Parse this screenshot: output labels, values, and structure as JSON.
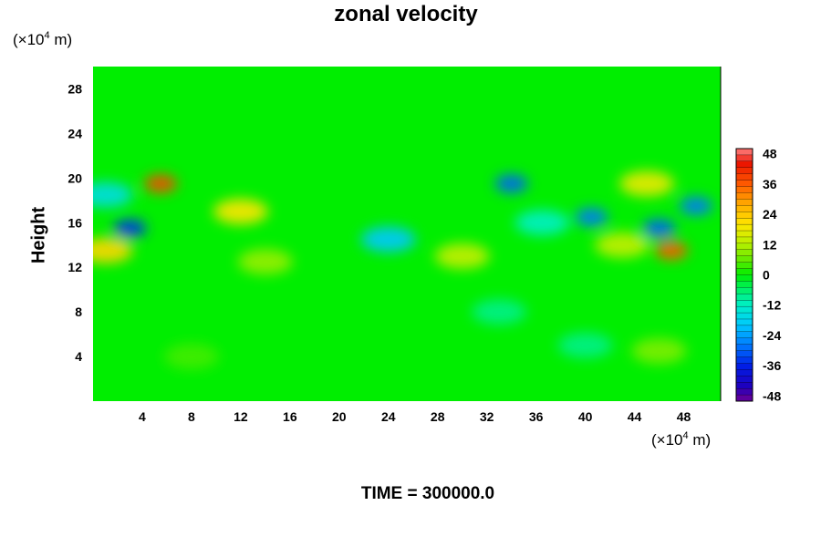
{
  "chart_data": {
    "type": "heatmap",
    "title": "zonal velocity",
    "ylabel": "Height",
    "xlabel": "",
    "x_unit_prefix": "(×10",
    "x_unit_exp": "4",
    "x_unit_suffix": " m)",
    "y_unit_prefix": "(×10",
    "y_unit_exp": "4",
    "y_unit_suffix": " m)",
    "xlim": [
      0,
      51
    ],
    "ylim": [
      0,
      30
    ],
    "x_ticks": [
      "4",
      "8",
      "12",
      "16",
      "20",
      "24",
      "28",
      "32",
      "36",
      "40",
      "44",
      "48"
    ],
    "y_ticks": [
      "4",
      "8",
      "12",
      "16",
      "20",
      "24",
      "28"
    ],
    "colorbar": {
      "range": [
        -50,
        50
      ],
      "ticks": [
        "48",
        "36",
        "24",
        "12",
        "0",
        "-12",
        "-24",
        "-36",
        "-48"
      ]
    },
    "background_value": 0,
    "features": [
      {
        "x": 5.5,
        "y": 19.5,
        "value": 38
      },
      {
        "x": 47,
        "y": 13.5,
        "value": 36
      },
      {
        "x": 3,
        "y": 15.5,
        "value": -34
      },
      {
        "x": 49,
        "y": 17.5,
        "value": -28
      },
      {
        "x": 34,
        "y": 19.5,
        "value": -30
      },
      {
        "x": 40.5,
        "y": 16.5,
        "value": -28
      },
      {
        "x": 46,
        "y": 15.5,
        "value": -30
      },
      {
        "x": 24,
        "y": 14.5,
        "value": -20
      },
      {
        "x": 1,
        "y": 13.5,
        "value": 22
      },
      {
        "x": 12,
        "y": 17,
        "value": 20
      },
      {
        "x": 45,
        "y": 19.5,
        "value": 18
      },
      {
        "x": 30,
        "y": 13,
        "value": 14
      },
      {
        "x": 43,
        "y": 14,
        "value": 14
      },
      {
        "x": 14,
        "y": 12.5,
        "value": 10
      },
      {
        "x": 36.5,
        "y": 16,
        "value": -12
      },
      {
        "x": 1,
        "y": 18.5,
        "value": -16
      },
      {
        "x": 33,
        "y": 8,
        "value": -8
      },
      {
        "x": 40,
        "y": 5,
        "value": -8
      },
      {
        "x": 46,
        "y": 4.5,
        "value": 8
      },
      {
        "x": 8,
        "y": 4,
        "value": 4
      }
    ],
    "time_label": "TIME = 300000.0"
  }
}
